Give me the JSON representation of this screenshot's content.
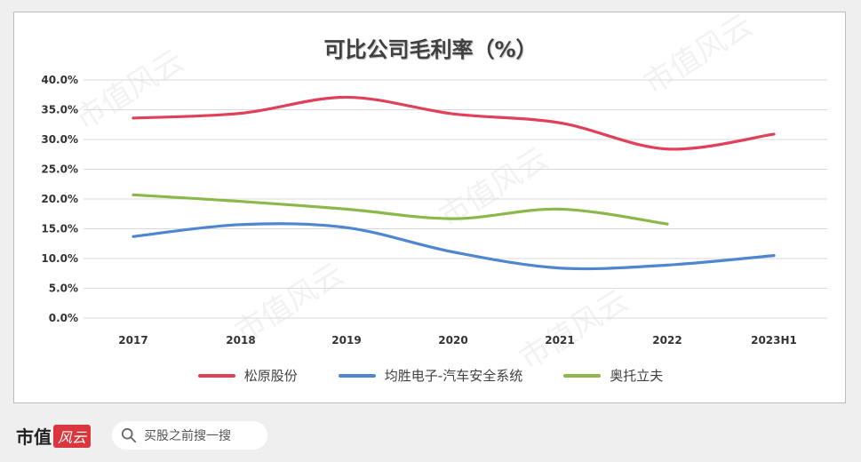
{
  "chart_data": {
    "type": "line",
    "title": "可比公司毛利率（%）",
    "categories": [
      "2017",
      "2018",
      "2019",
      "2020",
      "2021",
      "2022",
      "2023H1"
    ],
    "y_ticks": [
      "0.0%",
      "5.0%",
      "10.0%",
      "15.0%",
      "20.0%",
      "25.0%",
      "30.0%",
      "35.0%",
      "40.0%"
    ],
    "ylim": [
      0,
      40
    ],
    "grid": true,
    "legend_position": "bottom",
    "series": [
      {
        "name": "松原股份",
        "color": "#e0405a",
        "values": [
          33.6,
          34.4,
          37.1,
          34.3,
          32.8,
          28.4,
          30.9
        ]
      },
      {
        "name": "均胜电子-汽车安全系统",
        "color": "#4f86d0",
        "values": [
          13.7,
          15.7,
          15.2,
          11.1,
          8.4,
          8.9,
          10.5
        ]
      },
      {
        "name": "奥托立夫",
        "color": "#8cb84a",
        "values": [
          20.7,
          19.6,
          18.3,
          16.7,
          18.3,
          15.8,
          null
        ]
      }
    ]
  },
  "footer": {
    "brand": "市值",
    "brand_badge": "风云",
    "search_placeholder": "买股之前搜一搜"
  }
}
